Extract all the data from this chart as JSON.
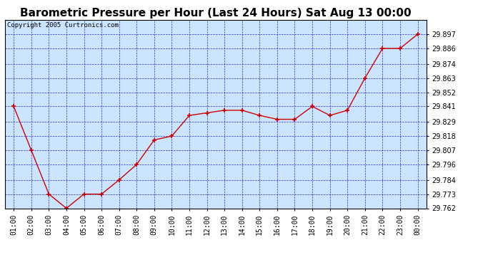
{
  "title": "Barometric Pressure per Hour (Last 24 Hours) Sat Aug 13 00:00",
  "copyright": "Copyright 2005 Curtronics.com",
  "x_labels": [
    "01:00",
    "02:00",
    "03:00",
    "04:00",
    "05:00",
    "06:00",
    "07:00",
    "08:00",
    "09:00",
    "10:00",
    "11:00",
    "12:00",
    "13:00",
    "14:00",
    "15:00",
    "16:00",
    "17:00",
    "18:00",
    "19:00",
    "20:00",
    "21:00",
    "22:00",
    "23:00",
    "00:00"
  ],
  "y_values": [
    29.841,
    29.807,
    29.773,
    29.762,
    29.773,
    29.773,
    29.784,
    29.796,
    29.815,
    29.818,
    29.834,
    29.836,
    29.838,
    29.838,
    29.834,
    29.831,
    29.831,
    29.841,
    29.834,
    29.838,
    29.863,
    29.886,
    29.886,
    29.897
  ],
  "ylim_min": 29.762,
  "ylim_max": 29.908,
  "yticks": [
    29.762,
    29.773,
    29.784,
    29.796,
    29.807,
    29.818,
    29.829,
    29.841,
    29.852,
    29.863,
    29.874,
    29.886,
    29.897
  ],
  "line_color": "#cc0000",
  "marker": "+",
  "marker_size": 5,
  "marker_color": "#cc0000",
  "bg_color": "#cce5ff",
  "grid_color": "#0000cc",
  "title_fontsize": 11,
  "tick_fontsize": 7,
  "copyright_fontsize": 6.5
}
